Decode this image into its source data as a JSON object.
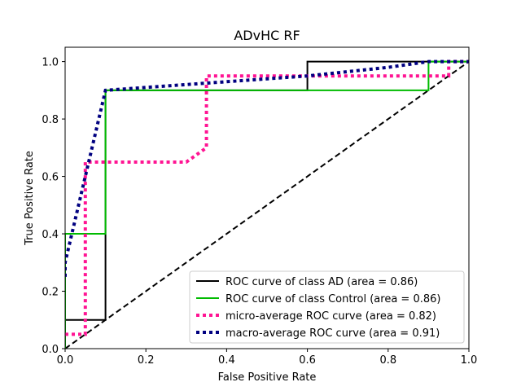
{
  "chart_data": {
    "type": "line",
    "title": "ADvHC RF",
    "xlabel": "False Positive Rate",
    "ylabel": "True Positive Rate",
    "xlim": [
      0.0,
      1.0
    ],
    "ylim": [
      0.0,
      1.05
    ],
    "xticks": [
      "0.0",
      "0.2",
      "0.4",
      "0.6",
      "0.8",
      "1.0"
    ],
    "yticks": [
      "0.0",
      "0.2",
      "0.4",
      "0.6",
      "0.8",
      "1.0"
    ],
    "grid": false,
    "legend_position": "lower-right",
    "series": [
      {
        "name": "ROC curve of class  AD (area = 0.86)",
        "color": "#000000",
        "style": "solid",
        "x": [
          0.0,
          0.0,
          0.1,
          0.1,
          0.6,
          0.6,
          1.0
        ],
        "y": [
          0.0,
          0.1,
          0.1,
          0.9,
          0.9,
          1.0,
          1.0
        ]
      },
      {
        "name": "ROC curve of class  Control (area = 0.86)",
        "color": "#00bb00",
        "style": "solid",
        "x": [
          0.0,
          0.0,
          0.1,
          0.1,
          0.9,
          0.9,
          1.0
        ],
        "y": [
          0.0,
          0.4,
          0.4,
          0.9,
          0.9,
          1.0,
          1.0
        ]
      },
      {
        "name": "micro-average ROC curve (area = 0.82)",
        "color": "#ff1493",
        "style": "dotted",
        "x": [
          0.0,
          0.05,
          0.05,
          0.3,
          0.35,
          0.35,
          0.4,
          0.6,
          0.95,
          0.95,
          1.0
        ],
        "y": [
          0.05,
          0.05,
          0.65,
          0.65,
          0.7,
          0.95,
          0.95,
          0.95,
          0.95,
          1.0,
          1.0
        ]
      },
      {
        "name": "macro-average ROC curve (area = 0.91)",
        "color": "#000080",
        "style": "dotted",
        "x": [
          0.0,
          0.0,
          0.05,
          0.1,
          0.1,
          0.2,
          0.4,
          0.6,
          0.8,
          0.9,
          1.0
        ],
        "y": [
          0.25,
          0.3,
          0.6,
          0.9,
          0.9,
          0.91,
          0.93,
          0.95,
          0.98,
          1.0,
          1.0
        ]
      }
    ],
    "reference_line": {
      "color": "#000000",
      "style": "dashed",
      "x": [
        0.0,
        1.0
      ],
      "y": [
        0.0,
        1.0
      ]
    }
  }
}
